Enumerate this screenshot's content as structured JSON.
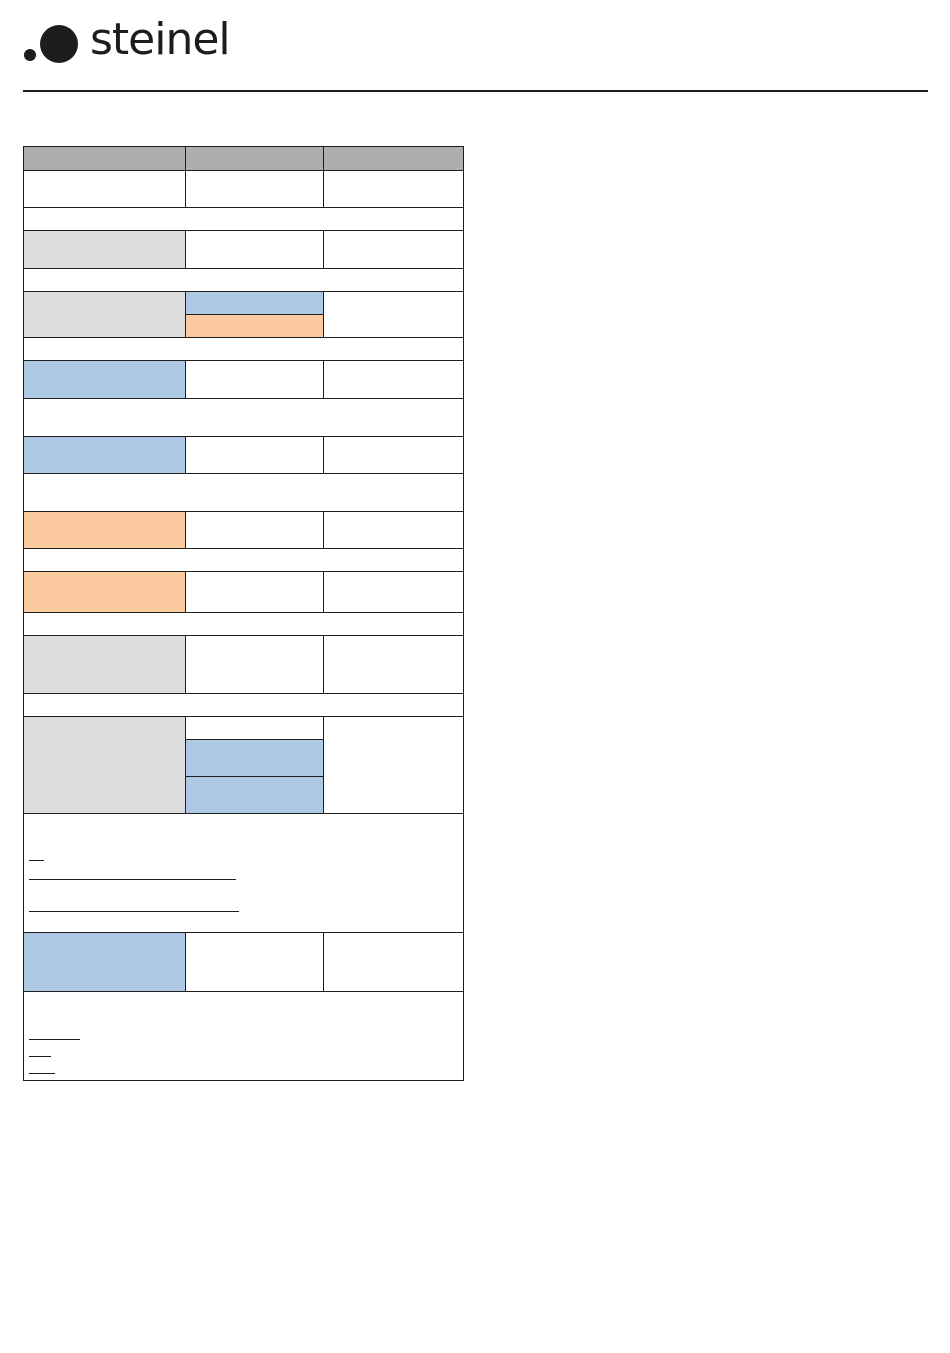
{
  "brand": {
    "name": "steinel",
    "colors": {
      "gray": "#dcdcdc",
      "blue": "#adc8e2",
      "orange": "#fbc9a0",
      "header": "#aeaeae"
    }
  },
  "table": {
    "header": [
      "",
      "",
      ""
    ]
  }
}
